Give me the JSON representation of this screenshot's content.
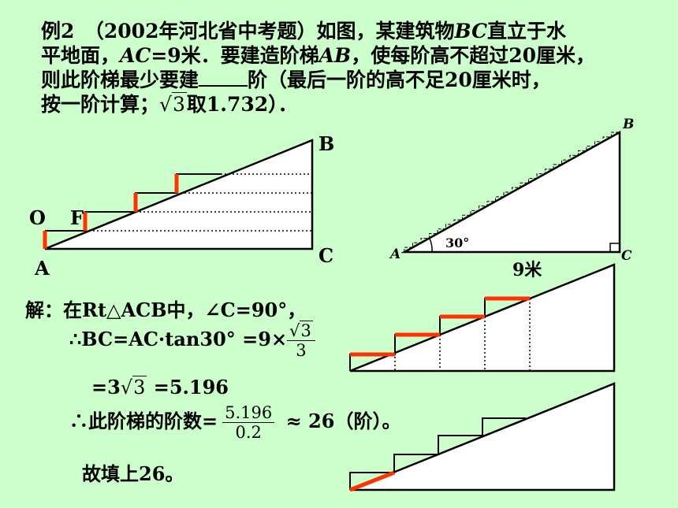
{
  "problem": {
    "line1_prefix": "例2　（2002年河北省中考题）如图，某建筑物",
    "line1_var": "BC",
    "line1_suffix": "直立于水",
    "line2_a": "平地面，",
    "line2_var1": "AC",
    "line2_b": "=9米．要建造阶梯",
    "line2_var2": "AB",
    "line2_c": "，使每阶高不超过20厘米，",
    "line3_a": "则此阶梯最少要建",
    "line3_b": "阶（最后一阶的高不足20厘米时，",
    "line4_a": "按一阶计算；",
    "line4_sqrt": "3",
    "line4_b": "取1.732）．"
  },
  "figure_left": {
    "labels": {
      "B": "B",
      "O": "O",
      "F": "F",
      "A": "A",
      "C": "C"
    }
  },
  "figure_right": {
    "labels": {
      "B": "B",
      "A": "A",
      "C": "C",
      "angle": "30°",
      "base": "9米"
    }
  },
  "solution": {
    "line1": "解：在Rt△ACB中，∠C=90°，",
    "line2_prefix": "∴BC=AC·tan30°  =9×",
    "line2_frac_num": "3",
    "line2_frac_den": "3",
    "line3_prefix": "=3",
    "line3_sqrt": "3",
    "line3_suffix": " =5.196",
    "line4_prefix": "∴此阶梯的阶数=",
    "line4_frac_num": "5.196",
    "line4_frac_den": "0.2",
    "line4_suffix": " ≈  26（阶）。",
    "line5": "故填上26。"
  },
  "colors": {
    "background": "#ccffcc",
    "highlight": "#ff3300",
    "triangle_fill": "#ffffff"
  }
}
